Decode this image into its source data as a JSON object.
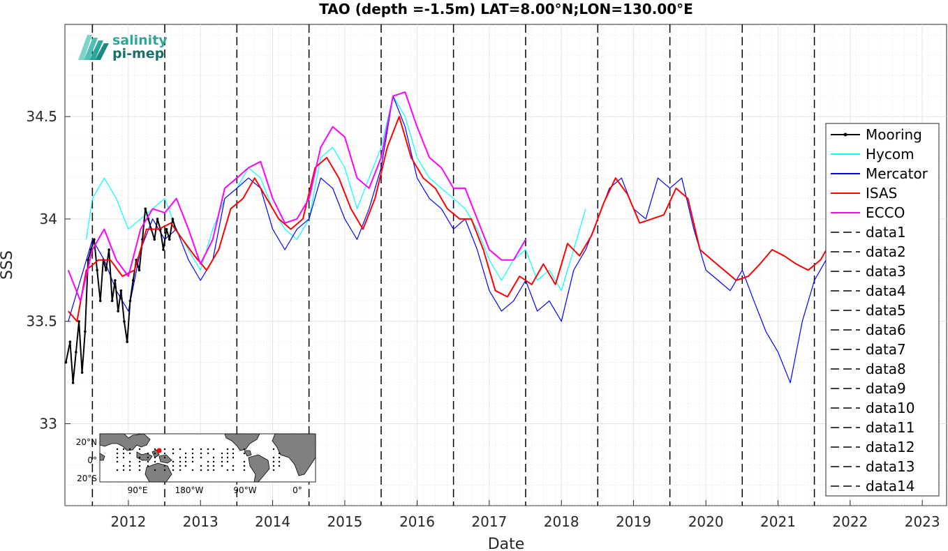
{
  "chart_data": {
    "type": "line",
    "title": "TAO (depth =-1.5m) LAT=8.00°N;LON=130.00°E",
    "xlabel": "Date",
    "ylabel": "SSS",
    "xlim": [
      "2011-08-15",
      "2023-11-01"
    ],
    "ylim": [
      32.6,
      34.95
    ],
    "x_ticks": [
      "2012",
      "2013",
      "2014",
      "2015",
      "2016",
      "2017",
      "2018",
      "2019",
      "2020",
      "2021",
      "2022",
      "2023"
    ],
    "y_ticks": [
      "33",
      "33.5",
      "34",
      "34.5"
    ],
    "grid": true,
    "legend_position": "right",
    "logo": {
      "line1": "salinity",
      "line2": "pi-mep"
    },
    "vertical_lines": [
      "2012-01-01",
      "2013-01-01",
      "2014-01-01",
      "2015-01-01",
      "2016-01-01",
      "2017-01-01",
      "2018-01-01",
      "2019-01-01",
      "2020-01-01",
      "2021-01-01",
      "2022-01-01"
    ],
    "series": [
      {
        "name": "Mooring",
        "color": "#000000",
        "style": "solid-dots",
        "points": [
          [
            "2011-08-20",
            33.3
          ],
          [
            "2011-09-10",
            33.4
          ],
          [
            "2011-09-25",
            33.2
          ],
          [
            "2011-10-10",
            33.35
          ],
          [
            "2011-10-25",
            33.5
          ],
          [
            "2011-11-10",
            33.25
          ],
          [
            "2011-11-25",
            33.45
          ],
          [
            "2011-12-10",
            33.8
          ],
          [
            "2011-12-25",
            33.85
          ],
          [
            "2012-01-10",
            33.9
          ],
          [
            "2012-01-25",
            33.75
          ],
          [
            "2012-02-10",
            33.6
          ],
          [
            "2012-02-25",
            33.8
          ],
          [
            "2012-03-10",
            33.75
          ],
          [
            "2012-03-25",
            33.85
          ],
          [
            "2012-04-10",
            33.6
          ],
          [
            "2012-04-25",
            33.7
          ],
          [
            "2012-05-10",
            33.55
          ],
          [
            "2012-05-25",
            33.65
          ],
          [
            "2012-06-10",
            33.5
          ],
          [
            "2012-06-25",
            33.4
          ],
          [
            "2012-07-10",
            33.6
          ],
          [
            "2012-07-25",
            33.7
          ],
          [
            "2012-08-10",
            33.8
          ],
          [
            "2012-08-25",
            33.75
          ],
          [
            "2012-09-10",
            33.9
          ],
          [
            "2012-09-25",
            34.05
          ],
          [
            "2012-10-10",
            34.0
          ],
          [
            "2012-10-25",
            33.95
          ],
          [
            "2012-11-10",
            33.9
          ],
          [
            "2012-11-25",
            34.0
          ],
          [
            "2012-12-10",
            33.95
          ],
          [
            "2012-12-25",
            33.85
          ],
          [
            "2013-01-10",
            33.95
          ],
          [
            "2013-01-25",
            33.9
          ],
          [
            "2013-02-10",
            34.0
          ],
          [
            "2013-02-25",
            33.95
          ]
        ]
      },
      {
        "name": "Hycom",
        "color": "#00ffff",
        "style": "solid",
        "points": [
          [
            "2011-12-01",
            33.9
          ],
          [
            "2012-01-01",
            34.1
          ],
          [
            "2012-03-01",
            34.2
          ],
          [
            "2012-05-01",
            34.1
          ],
          [
            "2012-07-01",
            33.95
          ],
          [
            "2012-09-01",
            34.0
          ],
          [
            "2012-11-01",
            34.05
          ],
          [
            "2013-01-01",
            34.1
          ],
          [
            "2013-03-01",
            33.95
          ],
          [
            "2013-05-01",
            33.85
          ],
          [
            "2013-07-01",
            33.75
          ],
          [
            "2013-09-01",
            33.95
          ],
          [
            "2013-11-01",
            34.1
          ],
          [
            "2014-01-01",
            34.15
          ],
          [
            "2014-03-01",
            34.25
          ],
          [
            "2014-05-01",
            34.2
          ],
          [
            "2014-07-01",
            34.05
          ],
          [
            "2014-09-01",
            33.95
          ],
          [
            "2014-11-01",
            33.9
          ],
          [
            "2015-01-01",
            34.0
          ],
          [
            "2015-03-01",
            34.3
          ],
          [
            "2015-05-01",
            34.35
          ],
          [
            "2015-07-01",
            34.25
          ],
          [
            "2015-09-01",
            34.05
          ],
          [
            "2015-11-01",
            34.2
          ],
          [
            "2016-01-01",
            34.35
          ],
          [
            "2016-03-01",
            34.6
          ],
          [
            "2016-05-01",
            34.5
          ],
          [
            "2016-07-01",
            34.3
          ],
          [
            "2016-09-01",
            34.2
          ],
          [
            "2016-11-01",
            34.15
          ],
          [
            "2017-01-01",
            34.1
          ],
          [
            "2017-03-01",
            34.05
          ],
          [
            "2017-05-01",
            33.95
          ],
          [
            "2017-07-01",
            33.8
          ],
          [
            "2017-09-01",
            33.7
          ],
          [
            "2017-11-01",
            33.8
          ],
          [
            "2018-01-01",
            33.85
          ],
          [
            "2018-03-01",
            33.7
          ],
          [
            "2018-05-01",
            33.75
          ],
          [
            "2018-07-01",
            33.65
          ],
          [
            "2018-09-01",
            33.85
          ],
          [
            "2018-11-01",
            34.05
          ]
        ]
      },
      {
        "name": "Mercator",
        "color": "#0000ff",
        "style": "solid",
        "points": [
          [
            "2011-09-01",
            33.5
          ],
          [
            "2011-11-01",
            33.7
          ],
          [
            "2012-01-01",
            33.9
          ],
          [
            "2012-03-01",
            33.8
          ],
          [
            "2012-05-01",
            33.65
          ],
          [
            "2012-07-01",
            33.55
          ],
          [
            "2012-09-01",
            33.85
          ],
          [
            "2012-11-01",
            34.0
          ],
          [
            "2013-01-01",
            33.9
          ],
          [
            "2013-03-01",
            33.95
          ],
          [
            "2013-05-01",
            33.8
          ],
          [
            "2013-07-01",
            33.7
          ],
          [
            "2013-09-01",
            33.8
          ],
          [
            "2013-11-01",
            34.1
          ],
          [
            "2014-01-01",
            34.15
          ],
          [
            "2014-03-01",
            34.2
          ],
          [
            "2014-05-01",
            34.15
          ],
          [
            "2014-07-01",
            33.95
          ],
          [
            "2014-09-01",
            33.85
          ],
          [
            "2014-11-01",
            33.95
          ],
          [
            "2015-01-01",
            34.0
          ],
          [
            "2015-03-01",
            34.2
          ],
          [
            "2015-05-01",
            34.15
          ],
          [
            "2015-07-01",
            34.0
          ],
          [
            "2015-09-01",
            33.9
          ],
          [
            "2015-11-01",
            34.05
          ],
          [
            "2016-01-01",
            34.25
          ],
          [
            "2016-03-01",
            34.6
          ],
          [
            "2016-05-01",
            34.45
          ],
          [
            "2016-07-01",
            34.2
          ],
          [
            "2016-09-01",
            34.1
          ],
          [
            "2016-11-01",
            34.05
          ],
          [
            "2017-01-01",
            33.95
          ],
          [
            "2017-03-01",
            34.0
          ],
          [
            "2017-05-01",
            33.85
          ],
          [
            "2017-07-01",
            33.65
          ],
          [
            "2017-09-01",
            33.55
          ],
          [
            "2017-11-01",
            33.6
          ],
          [
            "2018-01-01",
            33.7
          ],
          [
            "2018-03-01",
            33.55
          ],
          [
            "2018-05-01",
            33.6
          ],
          [
            "2018-07-01",
            33.5
          ],
          [
            "2018-09-01",
            33.75
          ],
          [
            "2018-11-01",
            33.85
          ],
          [
            "2019-01-01",
            34.0
          ],
          [
            "2019-03-01",
            34.15
          ],
          [
            "2019-05-01",
            34.2
          ],
          [
            "2019-07-01",
            34.05
          ],
          [
            "2019-09-01",
            34.0
          ],
          [
            "2019-11-01",
            34.2
          ],
          [
            "2020-01-01",
            34.15
          ],
          [
            "2020-03-01",
            34.2
          ],
          [
            "2020-05-01",
            33.95
          ],
          [
            "2020-07-01",
            33.75
          ],
          [
            "2020-09-01",
            33.7
          ],
          [
            "2020-11-01",
            33.65
          ],
          [
            "2021-01-01",
            33.75
          ],
          [
            "2021-03-01",
            33.6
          ],
          [
            "2021-05-01",
            33.45
          ],
          [
            "2021-07-01",
            33.35
          ],
          [
            "2021-09-01",
            33.2
          ],
          [
            "2021-11-01",
            33.5
          ],
          [
            "2022-01-01",
            33.7
          ],
          [
            "2022-03-01",
            33.8
          ],
          [
            "2022-05-01",
            33.75
          ]
        ]
      },
      {
        "name": "ISAS",
        "color": "#ff0000",
        "style": "solid",
        "points": [
          [
            "2011-09-01",
            33.55
          ],
          [
            "2011-10-15",
            33.5
          ],
          [
            "2011-12-01",
            33.75
          ],
          [
            "2012-02-01",
            33.8
          ],
          [
            "2012-04-01",
            33.8
          ],
          [
            "2012-06-01",
            33.72
          ],
          [
            "2012-08-01",
            33.75
          ],
          [
            "2012-10-01",
            33.95
          ],
          [
            "2012-12-01",
            33.95
          ],
          [
            "2013-02-01",
            33.98
          ],
          [
            "2013-04-01",
            33.9
          ],
          [
            "2013-06-01",
            33.82
          ],
          [
            "2013-08-01",
            33.75
          ],
          [
            "2013-10-01",
            33.85
          ],
          [
            "2013-12-01",
            34.05
          ],
          [
            "2014-02-01",
            34.1
          ],
          [
            "2014-04-01",
            34.2
          ],
          [
            "2014-06-01",
            34.1
          ],
          [
            "2014-08-01",
            34.0
          ],
          [
            "2014-10-01",
            33.95
          ],
          [
            "2014-12-01",
            34.0
          ],
          [
            "2015-02-01",
            34.25
          ],
          [
            "2015-04-01",
            34.3
          ],
          [
            "2015-06-01",
            34.2
          ],
          [
            "2015-08-01",
            34.05
          ],
          [
            "2015-10-01",
            33.95
          ],
          [
            "2015-12-01",
            34.1
          ],
          [
            "2016-02-01",
            34.35
          ],
          [
            "2016-04-01",
            34.5
          ],
          [
            "2016-06-01",
            34.3
          ],
          [
            "2016-08-01",
            34.2
          ],
          [
            "2016-10-01",
            34.15
          ],
          [
            "2016-12-01",
            34.05
          ],
          [
            "2017-02-01",
            34.0
          ],
          [
            "2017-04-01",
            34.0
          ],
          [
            "2017-06-01",
            33.85
          ],
          [
            "2017-08-01",
            33.65
          ],
          [
            "2017-10-01",
            33.62
          ],
          [
            "2017-12-01",
            33.72
          ],
          [
            "2018-02-01",
            33.68
          ],
          [
            "2018-04-01",
            33.78
          ],
          [
            "2018-06-01",
            33.68
          ],
          [
            "2018-08-01",
            33.88
          ],
          [
            "2018-10-01",
            33.82
          ],
          [
            "2018-12-01",
            33.92
          ],
          [
            "2019-02-01",
            34.08
          ],
          [
            "2019-04-01",
            34.2
          ],
          [
            "2019-06-01",
            34.12
          ],
          [
            "2019-08-01",
            33.98
          ],
          [
            "2019-10-01",
            34.0
          ],
          [
            "2019-12-01",
            34.02
          ],
          [
            "2020-02-01",
            34.15
          ],
          [
            "2020-04-01",
            34.1
          ],
          [
            "2020-06-01",
            33.85
          ],
          [
            "2020-08-01",
            33.8
          ],
          [
            "2020-10-01",
            33.75
          ],
          [
            "2020-12-01",
            33.7
          ],
          [
            "2021-02-01",
            33.72
          ],
          [
            "2021-04-01",
            33.78
          ],
          [
            "2021-06-01",
            33.85
          ],
          [
            "2021-08-01",
            33.82
          ],
          [
            "2021-10-01",
            33.78
          ],
          [
            "2021-12-01",
            33.75
          ],
          [
            "2022-02-01",
            33.8
          ],
          [
            "2022-04-01",
            33.9
          ]
        ]
      },
      {
        "name": "ECCO",
        "color": "#ff00ff",
        "style": "solid",
        "points": [
          [
            "2011-09-01",
            33.75
          ],
          [
            "2011-11-01",
            33.6
          ],
          [
            "2012-01-01",
            33.85
          ],
          [
            "2012-03-01",
            33.95
          ],
          [
            "2012-05-01",
            33.8
          ],
          [
            "2012-07-01",
            33.72
          ],
          [
            "2012-09-01",
            33.95
          ],
          [
            "2012-11-01",
            34.05
          ],
          [
            "2013-01-01",
            34.03
          ],
          [
            "2013-03-01",
            34.1
          ],
          [
            "2013-05-01",
            33.95
          ],
          [
            "2013-07-01",
            33.78
          ],
          [
            "2013-09-01",
            33.9
          ],
          [
            "2013-11-01",
            34.15
          ],
          [
            "2014-01-01",
            34.2
          ],
          [
            "2014-03-01",
            34.25
          ],
          [
            "2014-05-01",
            34.28
          ],
          [
            "2014-07-01",
            34.1
          ],
          [
            "2014-09-01",
            33.98
          ],
          [
            "2014-11-01",
            34.0
          ],
          [
            "2015-01-01",
            34.1
          ],
          [
            "2015-03-01",
            34.35
          ],
          [
            "2015-05-01",
            34.45
          ],
          [
            "2015-07-01",
            34.4
          ],
          [
            "2015-09-01",
            34.2
          ],
          [
            "2015-11-01",
            34.15
          ],
          [
            "2016-01-01",
            34.3
          ],
          [
            "2016-03-01",
            34.6
          ],
          [
            "2016-05-01",
            34.62
          ],
          [
            "2016-07-01",
            34.45
          ],
          [
            "2016-09-01",
            34.3
          ],
          [
            "2016-11-01",
            34.25
          ],
          [
            "2017-01-01",
            34.15
          ],
          [
            "2017-03-01",
            34.15
          ],
          [
            "2017-05-01",
            34.0
          ],
          [
            "2017-07-01",
            33.85
          ],
          [
            "2017-09-01",
            33.8
          ],
          [
            "2017-11-01",
            33.8
          ],
          [
            "2018-01-01",
            33.9
          ]
        ]
      }
    ],
    "legend": [
      "Mooring",
      "Hycom",
      "Mercator",
      "ISAS",
      "ECCO",
      "data1",
      "data2",
      "data3",
      "data4",
      "data5",
      "data6",
      "data7",
      "data8",
      "data9",
      "data10",
      "data11",
      "data12",
      "data13",
      "data14"
    ],
    "inset_map": {
      "y_ticks": [
        "20°N",
        "0°",
        "20°S"
      ],
      "x_ticks": [
        "90°E",
        "180°W",
        "90°W",
        "0°"
      ],
      "marker_color": "#ff0000"
    }
  }
}
